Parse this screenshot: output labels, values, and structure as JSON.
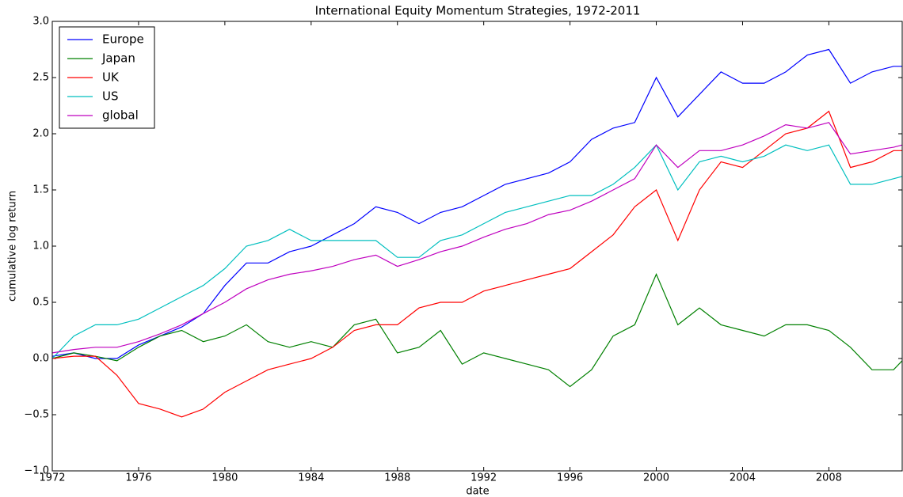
{
  "chart_data": {
    "type": "line",
    "title": "International Equity Momentum Strategies, 1972-2011",
    "xlabel": "date",
    "ylabel": "cumulative log return",
    "x": [
      1972,
      1973,
      1974,
      1975,
      1976,
      1977,
      1978,
      1979,
      1980,
      1981,
      1982,
      1983,
      1984,
      1985,
      1986,
      1987,
      1988,
      1989,
      1990,
      1991,
      1992,
      1993,
      1994,
      1995,
      1996,
      1997,
      1998,
      1999,
      2000,
      2001,
      2002,
      2003,
      2004,
      2005,
      2006,
      2007,
      2008,
      2009,
      2010,
      2011,
      2011.4
    ],
    "series": [
      {
        "name": "Europe",
        "color": "#0000ff",
        "values": [
          0.02,
          0.05,
          0.0,
          0.0,
          0.12,
          0.2,
          0.28,
          0.4,
          0.65,
          0.85,
          0.85,
          0.95,
          1.0,
          1.1,
          1.2,
          1.35,
          1.3,
          1.2,
          1.3,
          1.35,
          1.45,
          1.55,
          1.6,
          1.65,
          1.75,
          1.95,
          2.05,
          2.1,
          2.5,
          2.15,
          2.35,
          2.55,
          2.45,
          2.45,
          2.55,
          2.7,
          2.75,
          2.45,
          2.55,
          2.6,
          2.6
        ]
      },
      {
        "name": "Japan",
        "color": "#008000",
        "values": [
          0.0,
          0.05,
          0.02,
          -0.02,
          0.1,
          0.2,
          0.25,
          0.15,
          0.2,
          0.3,
          0.15,
          0.1,
          0.15,
          0.1,
          0.3,
          0.35,
          0.05,
          0.1,
          0.25,
          -0.05,
          0.05,
          0.0,
          -0.05,
          -0.1,
          -0.25,
          -0.1,
          0.2,
          0.3,
          0.75,
          0.3,
          0.45,
          0.3,
          0.25,
          0.2,
          0.3,
          0.3,
          0.25,
          0.1,
          -0.1,
          -0.1,
          -0.02
        ]
      },
      {
        "name": "UK",
        "color": "#ff0000",
        "values": [
          0.0,
          0.02,
          0.02,
          -0.15,
          -0.4,
          -0.45,
          -0.52,
          -0.45,
          -0.3,
          -0.2,
          -0.1,
          -0.05,
          0.0,
          0.1,
          0.25,
          0.3,
          0.3,
          0.45,
          0.5,
          0.5,
          0.6,
          0.65,
          0.7,
          0.75,
          0.8,
          0.95,
          1.1,
          1.35,
          1.5,
          1.05,
          1.5,
          1.75,
          1.7,
          1.85,
          2.0,
          2.05,
          2.2,
          1.7,
          1.75,
          1.85,
          1.85
        ]
      },
      {
        "name": "US",
        "color": "#00bfbf",
        "values": [
          0.0,
          0.2,
          0.3,
          0.3,
          0.35,
          0.45,
          0.55,
          0.65,
          0.8,
          1.0,
          1.05,
          1.15,
          1.05,
          1.05,
          1.05,
          1.05,
          0.9,
          0.9,
          1.05,
          1.1,
          1.2,
          1.3,
          1.35,
          1.4,
          1.45,
          1.45,
          1.55,
          1.7,
          1.9,
          1.5,
          1.75,
          1.8,
          1.75,
          1.8,
          1.9,
          1.85,
          1.9,
          1.55,
          1.55,
          1.6,
          1.62
        ]
      },
      {
        "name": "global",
        "color": "#bf00bf",
        "values": [
          0.05,
          0.08,
          0.1,
          0.1,
          0.15,
          0.22,
          0.3,
          0.4,
          0.5,
          0.62,
          0.7,
          0.75,
          0.78,
          0.82,
          0.88,
          0.92,
          0.82,
          0.88,
          0.95,
          1.0,
          1.08,
          1.15,
          1.2,
          1.28,
          1.32,
          1.4,
          1.5,
          1.6,
          1.9,
          1.7,
          1.85,
          1.85,
          1.9,
          1.98,
          2.08,
          2.05,
          2.1,
          1.82,
          1.85,
          1.88,
          1.9
        ]
      }
    ],
    "xlim": [
      1972,
      2011.4
    ],
    "xticks": [
      1972,
      1976,
      1980,
      1984,
      1988,
      1992,
      1996,
      2000,
      2004,
      2008
    ],
    "ylim": [
      -1.0,
      3.0
    ],
    "yticks": [
      {
        "value": -1.0,
        "label": "−1.0"
      },
      {
        "value": -0.5,
        "label": "−0.5"
      },
      {
        "value": 0.0,
        "label": "0.0"
      },
      0.5,
      {
        "value": 1.0,
        "label": "1.0"
      },
      1.5,
      {
        "value": 2.0,
        "label": "2.0"
      },
      2.5,
      {
        "value": 3.0,
        "label": "3.0"
      }
    ],
    "legend": "upper left"
  }
}
